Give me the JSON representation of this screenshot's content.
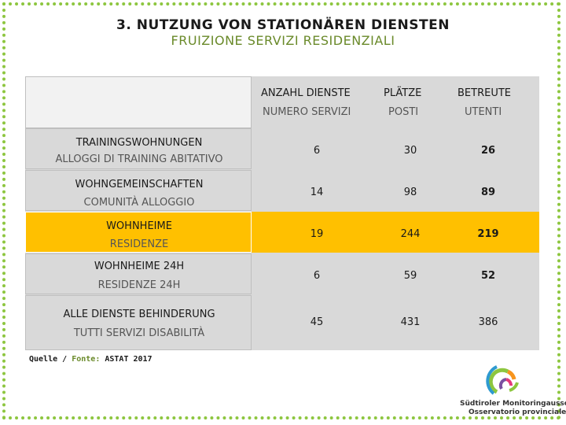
{
  "page": {
    "title": "3. NUTZUNG VON STATIONÄREN DIENSTEN",
    "subtitle": "FRUIZIONE SERVIZI RESIDENZIALI"
  },
  "table": {
    "headers": [
      {
        "de": "ANZAHL DIENSTE",
        "it": "NUMERO SERVIZI"
      },
      {
        "de": "PLÄTZE",
        "it": "POSTI"
      },
      {
        "de": "BETREUTE",
        "it": "UTENTI"
      }
    ],
    "rows": [
      {
        "de": "TRAININGSWOHNUNGEN",
        "it": "ALLOGGI DI TRAINING ABITATIVO",
        "values": [
          "6",
          "30",
          "26"
        ],
        "highlight": false
      },
      {
        "de": "WOHNGEMEINSCHAFTEN",
        "it": "COMUNITÀ ALLOGGIO",
        "values": [
          "14",
          "98",
          "89"
        ],
        "highlight": false
      },
      {
        "de": "WOHNHEIME",
        "it": "RESIDENZE",
        "values": [
          "19",
          "244",
          "219"
        ],
        "highlight": true
      },
      {
        "de": "WOHNHEIME 24H",
        "it": "RESIDENZE 24H",
        "values": [
          "6",
          "59",
          "52"
        ],
        "highlight": false
      },
      {
        "de": "ALLE DIENSTE BEHINDERUNG",
        "it": "TUTTI SERVIZI DISABILITÀ",
        "values": [
          "45",
          "431",
          "386"
        ],
        "highlight": false
      }
    ]
  },
  "source": {
    "label_de": "Quelle",
    "separator": "/",
    "label_it": "Fonte:",
    "value": "ASTAT 2017"
  },
  "logo": {
    "line1": "Südtiroler Monitoringausschuss",
    "line2": "Osservatorio provinciale"
  },
  "colors": {
    "highlight": "#ffc000",
    "accent_green": "#8dc63f",
    "subtitle": "#6a8a2a"
  }
}
